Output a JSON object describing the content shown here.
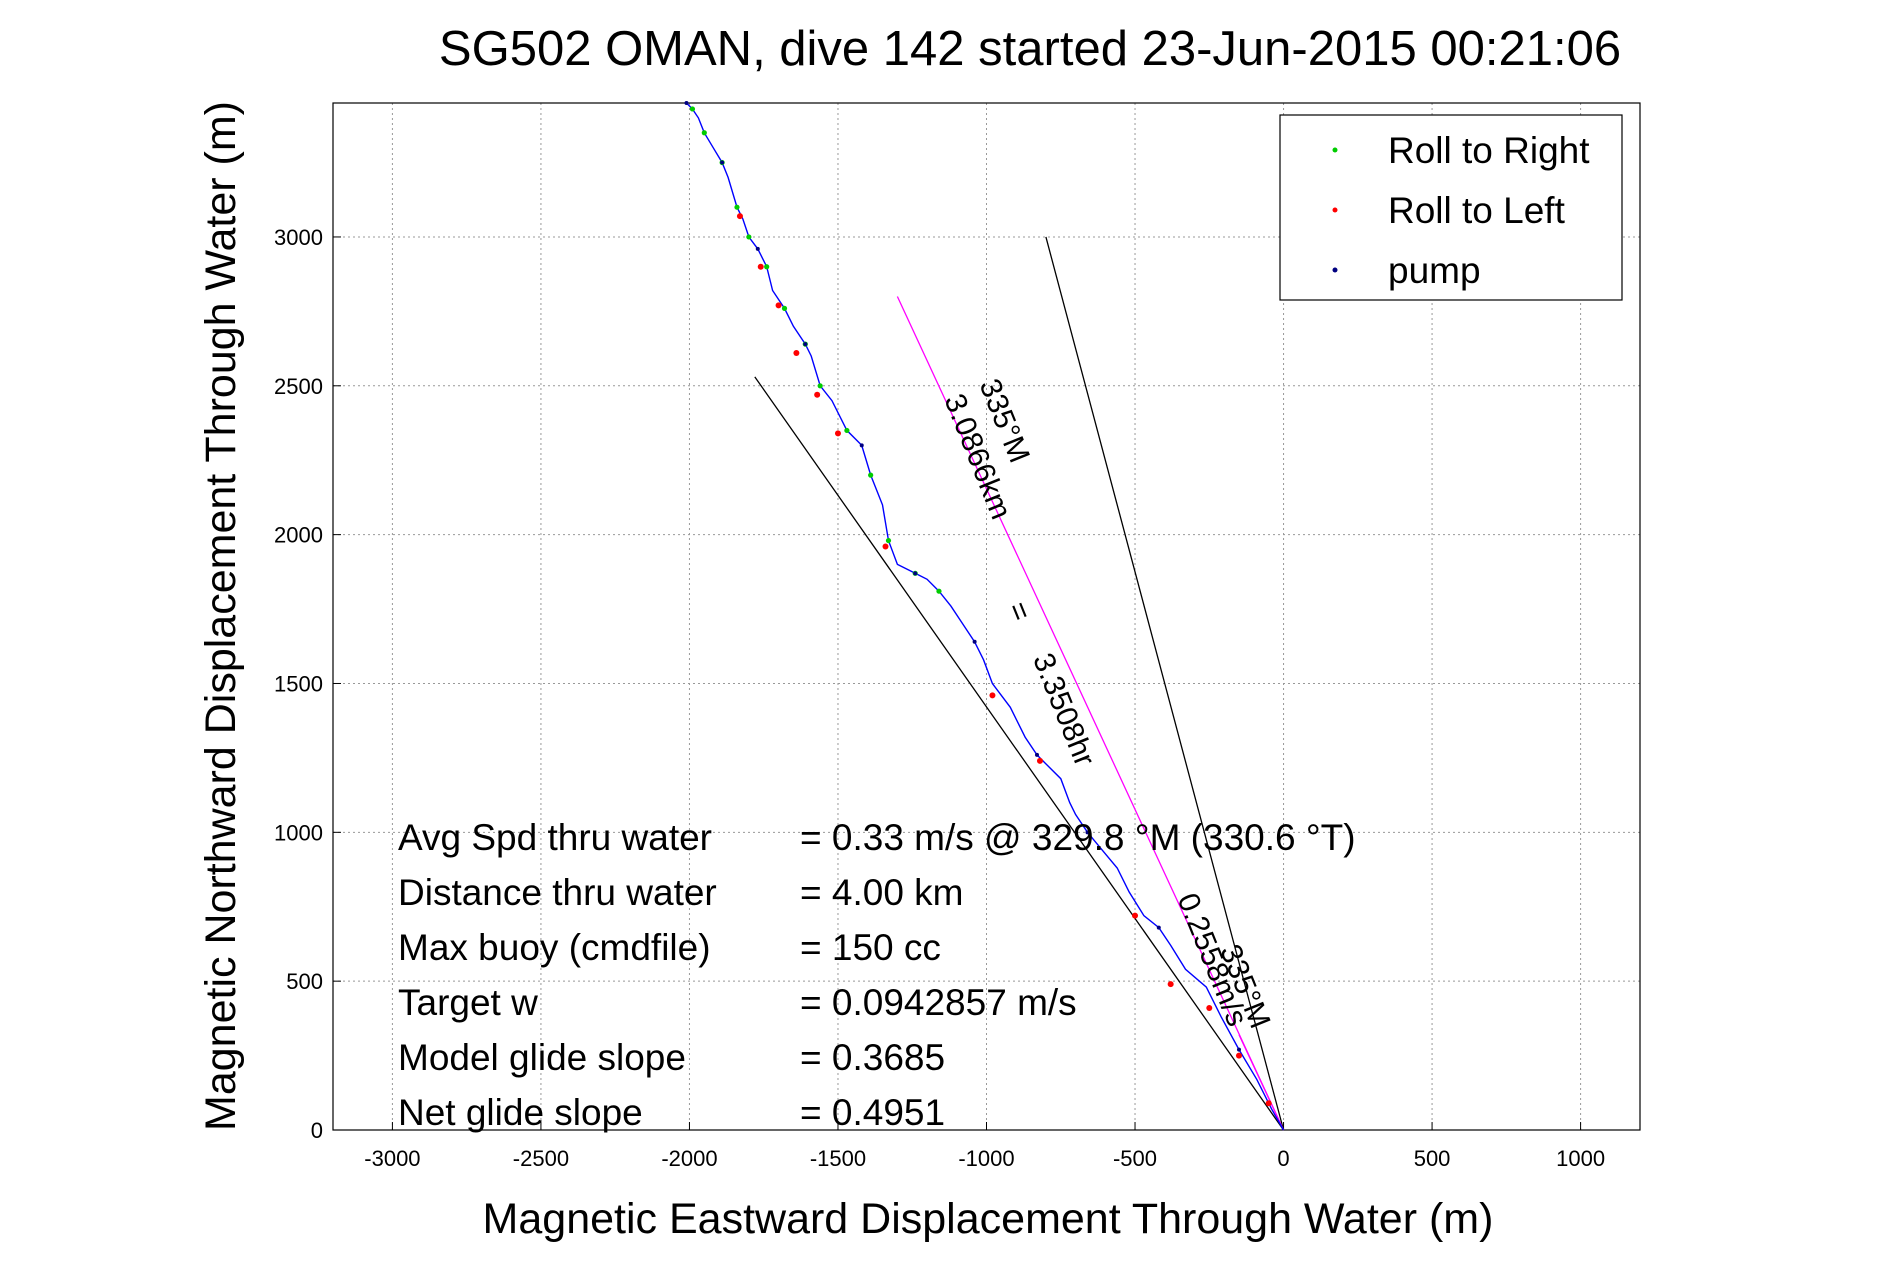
{
  "chart_data": {
    "type": "line",
    "title": "SG502 OMAN, dive 142 started 23-Jun-2015 00:21:06",
    "xlabel": "Magnetic Eastward Displacement Through Water (m)",
    "ylabel": "Magnetic Northward Displacement Through Water (m)",
    "xlim": [
      -3200,
      1200
    ],
    "ylim": [
      0,
      3450
    ],
    "xticks": [
      -3000,
      -2500,
      -2000,
      -1500,
      -1000,
      -500,
      0,
      500,
      1000
    ],
    "yticks": [
      0,
      500,
      1000,
      1500,
      2000,
      2500,
      3000
    ],
    "grid": true,
    "legend_position": "top-right",
    "legend": [
      {
        "label": "Roll to Right",
        "color": "#00cc00"
      },
      {
        "label": "Roll to Left",
        "color": "#ff0000"
      },
      {
        "label": "pump",
        "color": "#000080"
      }
    ],
    "track": {
      "color": "#0000ff",
      "x": [
        0,
        -40,
        -90,
        -150,
        -210,
        -260,
        -330,
        -380,
        -420,
        -470,
        -520,
        -560,
        -610,
        -660,
        -700,
        -720,
        -750,
        -800,
        -830,
        -870,
        -920,
        -980,
        -1010,
        -1040,
        -1080,
        -1120,
        -1160,
        -1200,
        -1240,
        -1300,
        -1330,
        -1350,
        -1390,
        -1420,
        -1470,
        -1520,
        -1560,
        -1590,
        -1610,
        -1650,
        -1680,
        -1720,
        -1740,
        -1770,
        -1800,
        -1820,
        -1840,
        -1870,
        -1890,
        -1920,
        -1950,
        -1970,
        -1990,
        -2010
      ],
      "y": [
        0,
        70,
        170,
        270,
        380,
        480,
        540,
        620,
        680,
        720,
        800,
        880,
        940,
        1000,
        1060,
        1100,
        1180,
        1230,
        1260,
        1320,
        1420,
        1500,
        1580,
        1640,
        1700,
        1760,
        1810,
        1850,
        1870,
        1900,
        1980,
        2100,
        2200,
        2300,
        2350,
        2450,
        2500,
        2600,
        2640,
        2700,
        2760,
        2820,
        2900,
        2960,
        3000,
        3060,
        3100,
        3200,
        3250,
        3300,
        3350,
        3400,
        3430,
        3450
      ]
    },
    "roll_left_points": {
      "x": [
        -50,
        -150,
        -250,
        -380,
        -500,
        -820,
        -980,
        -1340,
        -1500,
        -1570,
        -1640,
        -1700,
        -1760,
        -1830
      ],
      "y": [
        90,
        250,
        410,
        490,
        720,
        1240,
        1460,
        1960,
        2340,
        2470,
        2610,
        2770,
        2900,
        3070
      ]
    },
    "annotation_lines": [
      {
        "color": "#000000",
        "x": [
          0,
          -1780
        ],
        "y": [
          0,
          2530
        ]
      },
      {
        "color": "#ff00ff",
        "x": [
          0,
          -1300
        ],
        "y": [
          0,
          2800
        ]
      },
      {
        "color": "#000000",
        "x": [
          0,
          -800
        ],
        "y": [
          0,
          3000
        ]
      },
      {
        "color": "#ff00ff",
        "x": [
          0,
          -150
        ],
        "y": [
          0,
          320
        ]
      }
    ],
    "rotated_labels": [
      {
        "text": "3.0866km",
        "x": -1060,
        "y": 2250
      },
      {
        "text": "335°M",
        "x": -970,
        "y": 2370
      },
      {
        "text": "=",
        "x": -920,
        "y": 1730
      },
      {
        "text": "3.3508hr",
        "x": -770,
        "y": 1400
      },
      {
        "text": "0.2558m/s",
        "x": -270,
        "y": 560
      },
      {
        "text": "335°M",
        "x": -160,
        "y": 470
      }
    ],
    "stats": [
      {
        "label": "Avg Spd thru water",
        "value": "=  0.33 m/s @ 329.8 °M (330.6 °T)"
      },
      {
        "label": "Distance thru water",
        "value": "=  4.00 km"
      },
      {
        "label": "Max buoy (cmdfile)",
        "value": "= 150 cc"
      },
      {
        "label": "Target w",
        "value": "= 0.0942857 m/s"
      },
      {
        "label": "Model glide slope",
        "value": "= 0.3685"
      },
      {
        "label": "Net glide slope",
        "value": "= 0.4951"
      }
    ]
  }
}
